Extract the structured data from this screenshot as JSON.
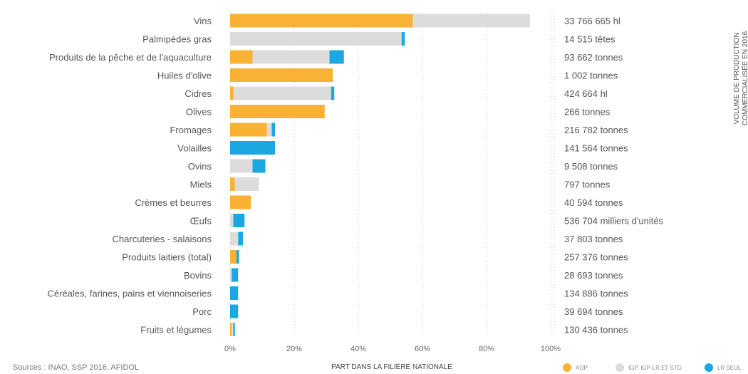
{
  "chart_data": {
    "type": "bar",
    "stacked": true,
    "orientation": "horizontal",
    "title": "",
    "xlabel": "PART DANS LA FILIÈRE NATIONALE",
    "xlim": [
      0,
      100
    ],
    "x_ticks": [
      "0%",
      "20%",
      "40%",
      "60%",
      "80%",
      "100%"
    ],
    "grid": true,
    "legend_position": "bottom-right",
    "side_title_lines": [
      "VOLUME DE PRODUCTION",
      "COMMERCIALISÉE EN 2016"
    ],
    "source": "Sources : INAO, SSP 2016, AFIDOL",
    "categories": [
      "Vins",
      "Palmipèdes gras",
      "Produits de la pêche et de l'aquaculture",
      "Huiles d'olive",
      "Cidres",
      "Olives",
      "Fromages",
      "Volailles",
      "Ovins",
      "Miels",
      "Crèmes et beurres",
      "Œufs",
      "Charcuteries - salaisons",
      "Produits laitiers (total)",
      "Bovins",
      "Céréales, farines, pains et viennoiseries",
      "Porc",
      "Fruits et légumes"
    ],
    "volumes": [
      "33 766 665 hl",
      "14 515 têtes",
      "93 662 tonnes",
      "1 002 tonnes",
      "424 664 hl",
      "266 tonnes",
      "216 782 tonnes",
      "141 564 tonnes",
      "9 508 tonnes",
      "797 tonnes",
      "40 594 tonnes",
      "536 704 milliers d'unités",
      "37 803 tonnes",
      "257 376 tonnes",
      "28 693 tonnes",
      "134 886 tonnes",
      "39 694 tonnes",
      "130 436 tonnes"
    ],
    "series": [
      {
        "name": "AOP",
        "color": "#F9B233",
        "values": [
          57,
          0,
          7,
          32,
          1,
          29.5,
          11.5,
          0,
          0,
          1.5,
          6.5,
          0,
          0,
          2,
          0,
          0,
          0,
          0.5
        ]
      },
      {
        "name": "IGP, IGP-LR ET STG",
        "color": "#DCDCDC",
        "values": [
          36.5,
          53.5,
          24,
          0,
          30.5,
          0,
          1.5,
          0,
          7,
          7.5,
          0,
          1,
          2.5,
          0,
          0.5,
          0,
          0,
          0.5
        ]
      },
      {
        "name": "LR SEUL",
        "color": "#1BA8E0",
        "values": [
          0,
          1,
          4.5,
          0,
          1,
          0,
          1,
          14,
          4,
          0,
          0,
          3.5,
          1.5,
          0.8,
          2,
          2.5,
          2.5,
          0.5
        ]
      }
    ]
  }
}
